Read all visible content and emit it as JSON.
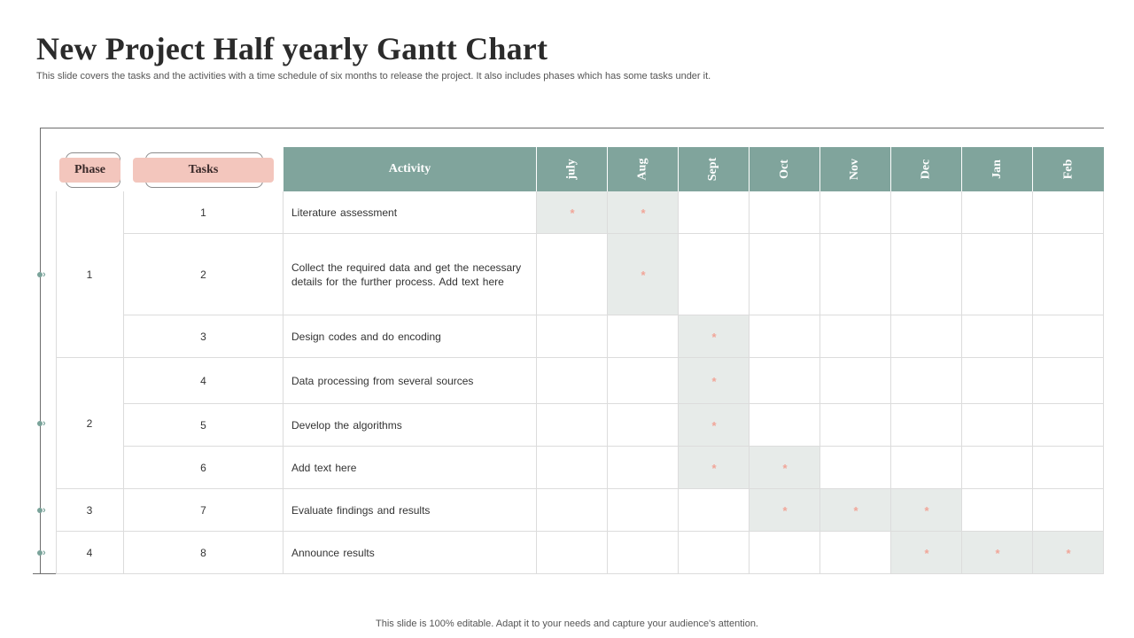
{
  "title": "New Project Half yearly Gantt Chart",
  "subtitle": "This slide covers the tasks and the activities with a time schedule of six months  to release the project. It also includes phases which has some tasks under it.",
  "footer": "This slide is 100% editable. Adapt it to your needs and capture your audience's attention.",
  "headers": {
    "phase": "Phase",
    "tasks": "Tasks",
    "activity": "Activity"
  },
  "months": [
    "july",
    "Aug",
    "Sept",
    "Oct",
    "Nov",
    "Dec",
    "Jan",
    "Feb"
  ],
  "marker_symbol": "*",
  "colors": {
    "header_bg": "#80a49c",
    "pill_bg": "#f3c6bd",
    "highlight": "#e7ebe9",
    "marker": "#f1a598",
    "connector": "#7aa39a"
  },
  "phases": [
    {
      "label": "1",
      "task_range": [
        1,
        3
      ]
    },
    {
      "label": "2",
      "task_range": [
        4,
        6
      ]
    },
    {
      "label": "3",
      "task_range": [
        7,
        7
      ]
    },
    {
      "label": "4",
      "task_range": [
        8,
        8
      ]
    }
  ],
  "tasks": [
    {
      "num": "1",
      "activity": "Literature  assessment",
      "months": [
        "july",
        "Aug"
      ]
    },
    {
      "num": "2",
      "activity": "Collect the required  data and get the necessary details for the further  process. Add text here",
      "months": [
        "Aug"
      ]
    },
    {
      "num": "3",
      "activity": "Design codes and do encoding",
      "months": [
        "Sept"
      ]
    },
    {
      "num": "4",
      "activity": "Data processing from  several  sources",
      "months": [
        "Sept"
      ]
    },
    {
      "num": "5",
      "activity": "Develop  the algorithms",
      "months": [
        "Sept"
      ]
    },
    {
      "num": "6",
      "activity": "Add text here",
      "months": [
        "Sept",
        "Oct"
      ]
    },
    {
      "num": "7",
      "activity": "Evaluate  findings and results",
      "months": [
        "Oct",
        "Nov",
        "Dec"
      ]
    },
    {
      "num": "8",
      "activity": "Announce results",
      "months": [
        "Dec",
        "Jan",
        "Feb"
      ]
    }
  ]
}
